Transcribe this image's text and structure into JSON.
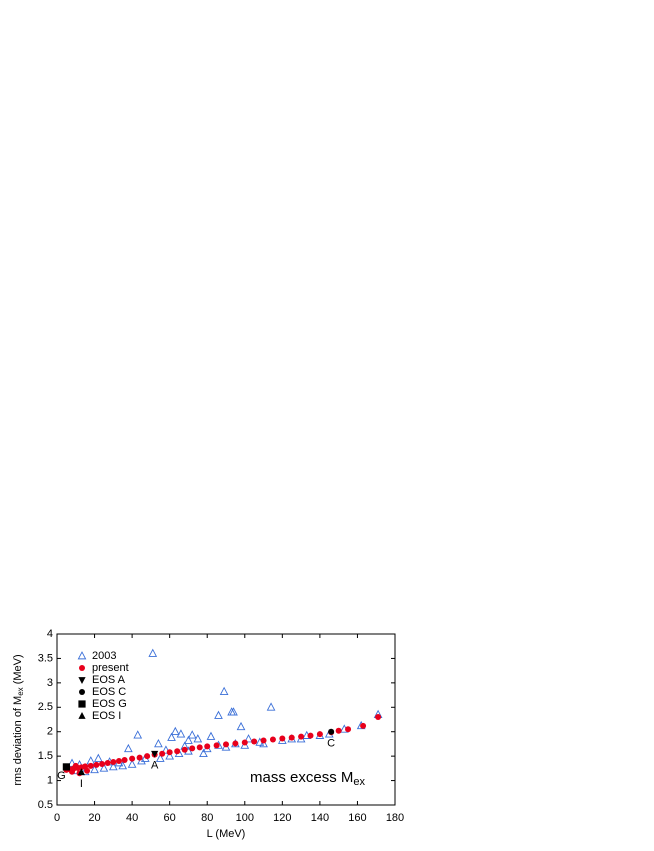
{
  "chart_data": {
    "type": "scatter",
    "x_label": "L (MeV)",
    "y_label": {
      "text": "rms deviation of M",
      "sub": "ex",
      "rest": " (MeV)"
    },
    "annotation": {
      "text": "mass excess M",
      "sub": "ex"
    },
    "xlim": [
      0,
      180
    ],
    "xticks": [
      0,
      20,
      40,
      60,
      80,
      100,
      120,
      140,
      160,
      180
    ],
    "ylim": [
      0.5,
      4.0
    ],
    "yticks": [
      0.5,
      1.0,
      1.5,
      2.0,
      2.5,
      3.0,
      3.5,
      4.0
    ],
    "legend": "upper left",
    "series": [
      {
        "name": "2003",
        "color": "#3a6fd8",
        "marker": "triangle-open",
        "x": [
          51,
          89,
          93,
          94,
          114,
          86,
          98,
          43,
          63,
          66,
          61,
          70,
          72,
          82,
          102,
          75,
          54,
          38,
          58,
          171,
          162,
          153,
          133,
          108,
          120,
          125,
          140,
          10,
          15,
          20,
          25,
          30,
          35,
          40,
          45,
          55,
          60,
          65,
          70,
          78,
          80,
          90,
          100,
          110,
          8,
          22,
          12,
          28,
          47,
          86,
          95,
          130,
          145,
          18,
          33,
          68
        ],
        "values": [
          3.6,
          2.82,
          2.4,
          2.4,
          2.5,
          2.33,
          2.1,
          1.93,
          2.0,
          1.95,
          1.88,
          1.82,
          1.93,
          1.9,
          1.85,
          1.85,
          1.75,
          1.65,
          1.62,
          2.35,
          2.12,
          2.05,
          1.92,
          1.78,
          1.82,
          1.85,
          1.92,
          1.2,
          1.18,
          1.22,
          1.25,
          1.28,
          1.3,
          1.33,
          1.4,
          1.45,
          1.5,
          1.55,
          1.6,
          1.55,
          1.65,
          1.68,
          1.72,
          1.75,
          1.35,
          1.45,
          1.32,
          1.38,
          1.45,
          1.72,
          1.75,
          1.85,
          1.95,
          1.4,
          1.36,
          1.7
        ]
      },
      {
        "name": "present",
        "color": "#e8001c",
        "marker": "circle",
        "x": [
          5,
          7,
          9,
          11,
          13,
          15,
          18,
          21,
          24,
          27,
          30,
          33,
          36,
          40,
          44,
          48,
          52,
          56,
          60,
          64,
          68,
          72,
          76,
          80,
          85,
          90,
          95,
          100,
          105,
          110,
          115,
          120,
          125,
          130,
          135,
          140,
          146,
          150,
          155,
          163,
          171,
          8,
          12,
          10,
          16
        ],
        "values": [
          1.22,
          1.23,
          1.25,
          1.26,
          1.27,
          1.29,
          1.3,
          1.32,
          1.34,
          1.36,
          1.38,
          1.4,
          1.42,
          1.45,
          1.47,
          1.5,
          1.53,
          1.55,
          1.58,
          1.6,
          1.63,
          1.66,
          1.68,
          1.7,
          1.72,
          1.74,
          1.76,
          1.78,
          1.8,
          1.82,
          1.84,
          1.86,
          1.88,
          1.9,
          1.92,
          1.95,
          1.99,
          2.02,
          2.05,
          2.12,
          2.3,
          1.18,
          1.15,
          1.3,
          1.2
        ]
      },
      {
        "name": "EOS A",
        "color": "#000000",
        "marker": "triangle-down",
        "point_label": "A",
        "x": [
          52
        ],
        "values": [
          1.55
        ]
      },
      {
        "name": "EOS C",
        "color": "#000000",
        "marker": "circle",
        "point_label": "C",
        "x": [
          146
        ],
        "values": [
          2.0
        ]
      },
      {
        "name": "EOS G",
        "color": "#000000",
        "marker": "square",
        "point_label": "G",
        "x": [
          5
        ],
        "values": [
          1.28
        ]
      },
      {
        "name": "EOS I",
        "color": "#000000",
        "marker": "triangle",
        "point_label": "I",
        "x": [
          13
        ],
        "values": [
          1.17
        ]
      }
    ]
  }
}
